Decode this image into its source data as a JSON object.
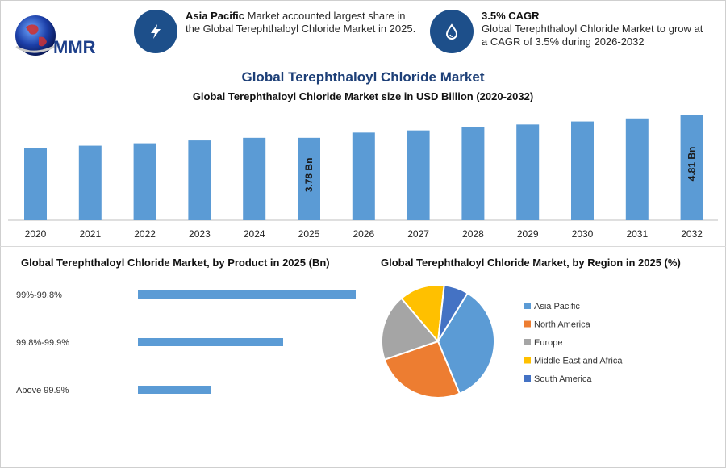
{
  "brand": {
    "logo_text": "MMR"
  },
  "highlights": [
    {
      "icon": "lightning-icon",
      "bold": "Asia Pacific",
      "text": " Market accounted largest share in the Global Terephthaloyl Chloride Market in 2025."
    },
    {
      "icon": "water-drop-icon",
      "bold": "3.5% CAGR",
      "text": "Global Terephthaloyl Chloride Market to grow at a CAGR of 3.5% during 2026-2032"
    }
  ],
  "colors": {
    "accent": "#1d4f8a",
    "title": "#1d3f77",
    "bar": "#5b9bd5"
  },
  "header": {
    "title": "Global Terephthaloyl Chloride Market"
  },
  "chart_data": [
    {
      "type": "bar",
      "title": "Global Terephthaloyl Chloride Market size in USD Billion (2020-2032)",
      "categories": [
        "2020",
        "2021",
        "2022",
        "2023",
        "2024",
        "2025",
        "2026",
        "2027",
        "2028",
        "2029",
        "2030",
        "2031",
        "2032"
      ],
      "values": [
        3.3,
        3.42,
        3.53,
        3.66,
        3.78,
        3.78,
        4.02,
        4.12,
        4.26,
        4.39,
        4.53,
        4.67,
        4.81
      ],
      "data_labels": [
        {
          "category": "2025",
          "text": "3.78 Bn"
        },
        {
          "category": "2032",
          "text": "4.81 Bn"
        }
      ],
      "ylim": [
        0,
        4.81
      ],
      "grid": false
    },
    {
      "type": "bar",
      "orientation": "horizontal",
      "title": "Global Terephthaloyl Chloride Market, by Product in 2025 (Bn)",
      "categories": [
        "99%-99.8%",
        "99.8%-99.9%",
        "Above 99.9%"
      ],
      "values": [
        1.8,
        1.2,
        0.6
      ],
      "grid": false
    },
    {
      "type": "pie",
      "title": "Global Terephthaloyl Chloride Market, by Region in 2025 (%)",
      "categories": [
        "Asia Pacific",
        "North America",
        "Europe",
        "Middle East and Africa",
        "South America"
      ],
      "values": [
        35,
        26,
        19,
        13,
        7
      ],
      "colors": [
        "#5b9bd5",
        "#ed7d31",
        "#a5a5a5",
        "#ffc000",
        "#4472c4"
      ],
      "legend": "right"
    }
  ]
}
